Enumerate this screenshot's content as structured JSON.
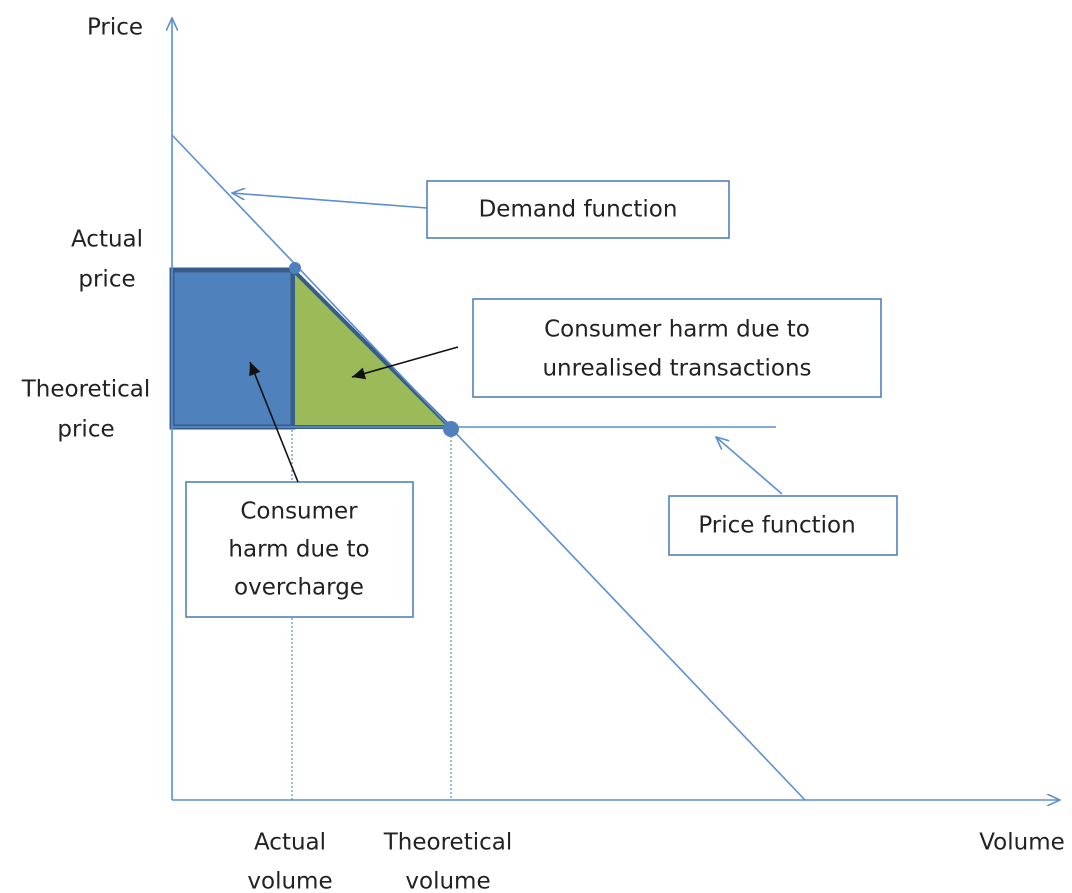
{
  "axes": {
    "y_label": "Price",
    "x_label": "Volume"
  },
  "price_labels": [
    {
      "lines": [
        "Actual",
        "price"
      ]
    },
    {
      "lines": [
        "Theoretical",
        "price"
      ]
    }
  ],
  "volume_labels": [
    {
      "lines": [
        "Actual",
        "volume"
      ]
    },
    {
      "lines": [
        "Theoretical",
        "volume"
      ]
    }
  ],
  "callouts": [
    {
      "lines": [
        "Demand function"
      ]
    },
    {
      "lines": [
        "Consumer harm due to",
        "unrealised transactions"
      ]
    },
    {
      "lines": [
        "Consumer",
        "harm due to",
        "overcharge"
      ]
    },
    {
      "lines": [
        "Price function"
      ]
    }
  ]
}
